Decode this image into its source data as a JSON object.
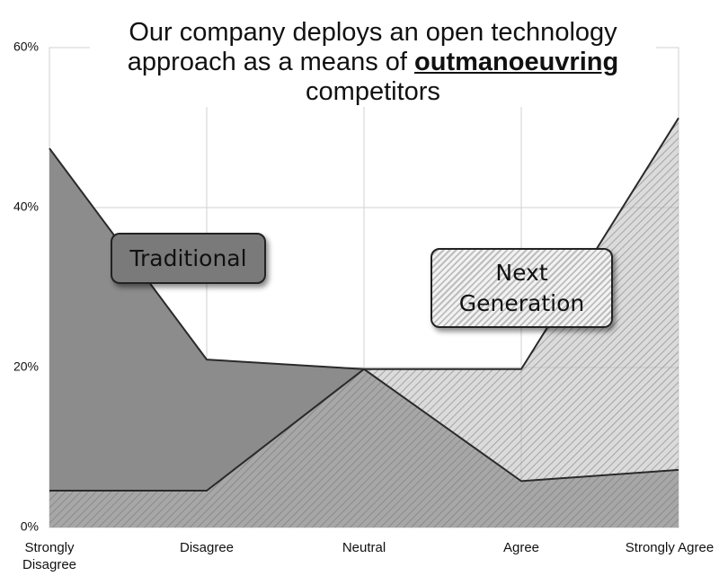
{
  "chart_data": {
    "type": "area",
    "title": {
      "line1": "Our company deploys an open technology",
      "line2_before": "approach as a means of",
      "emphasis": "outmanoeuvring",
      "line3": "competitors"
    },
    "categories": [
      "Strongly Disagree",
      "Disagree",
      "Neutral",
      "Agree",
      "Strongly Agree"
    ],
    "series": [
      {
        "name": "Traditional",
        "color": "#8c8c8c",
        "values": [
          47.4,
          21,
          19.8,
          5.8,
          7.2
        ]
      },
      {
        "name": "Next Generation",
        "color": "#d6d6d6",
        "values": [
          4.6,
          4.6,
          19.8,
          19.8,
          51.2
        ]
      }
    ],
    "ylim": [
      0,
      60
    ],
    "yticks": [
      {
        "value": 0,
        "label": "0%"
      },
      {
        "value": 20,
        "label": "20%"
      },
      {
        "value": 40,
        "label": "40%"
      },
      {
        "value": 60,
        "label": "60%"
      }
    ],
    "grid": true
  }
}
